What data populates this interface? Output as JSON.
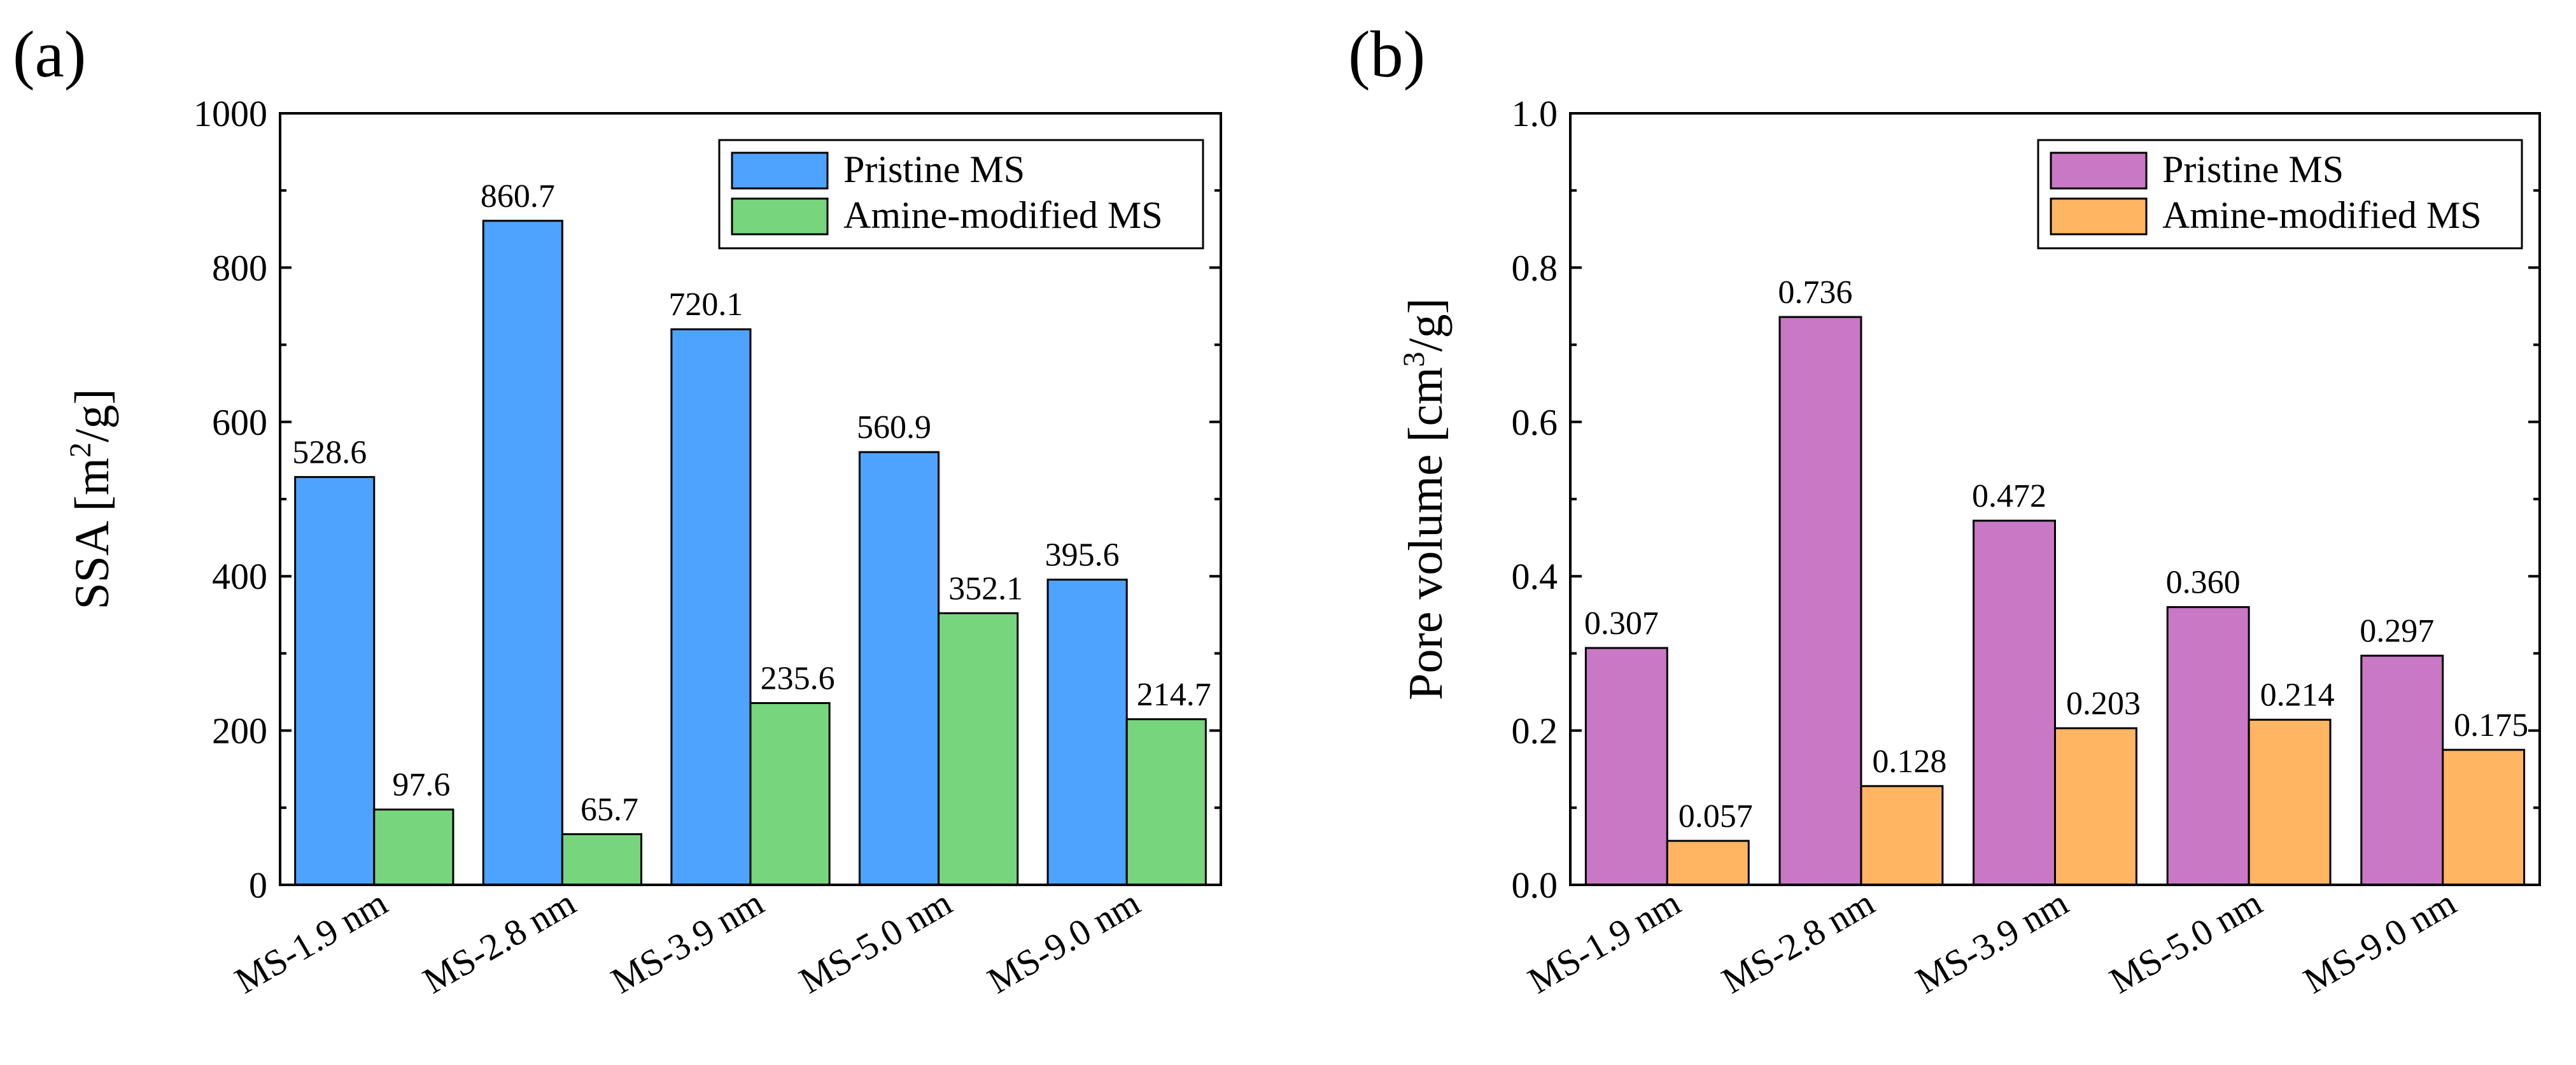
{
  "chart_data": [
    {
      "type": "bar",
      "panel_label": "(a)",
      "title": "",
      "ylabel": "SSA [m²/g]",
      "ylabel_main": "SSA [m",
      "ylabel_sup": "2",
      "ylabel_tail": "/g]",
      "xlabel": "",
      "ylim": [
        0,
        1000
      ],
      "yticks": [
        0,
        200,
        400,
        600,
        800,
        1000
      ],
      "ytick_labels": [
        "0",
        "200",
        "400",
        "600",
        "800",
        "1000"
      ],
      "categories": [
        "MS-1.9 nm",
        "MS-2.8 nm",
        "MS-3.9 nm",
        "MS-5.0 nm",
        "MS-9.0 nm"
      ],
      "series": [
        {
          "name": "Pristine MS",
          "color": "#4da3ff",
          "values": [
            528.6,
            860.7,
            720.1,
            560.9,
            395.6
          ],
          "labels": [
            "528.6",
            "860.7",
            "720.1",
            "560.9",
            "395.6"
          ]
        },
        {
          "name": "Amine-modified MS",
          "color": "#77d67d",
          "values": [
            97.6,
            65.7,
            235.6,
            352.1,
            214.7
          ],
          "labels": [
            "97.6",
            "65.7",
            "235.6",
            "352.1",
            "214.7"
          ]
        }
      ],
      "legend_position": "top-right",
      "grid": false
    },
    {
      "type": "bar",
      "panel_label": "(b)",
      "title": "",
      "ylabel": "Pore volume [cm³/g]",
      "ylabel_main": "Pore volume [cm",
      "ylabel_sup": "3",
      "ylabel_tail": "/g]",
      "xlabel": "",
      "ylim": [
        0,
        1.0
      ],
      "yticks": [
        0,
        0.2,
        0.4,
        0.6,
        0.8,
        1.0
      ],
      "ytick_labels": [
        "0.0",
        "0.2",
        "0.4",
        "0.6",
        "0.8",
        "1.0"
      ],
      "categories": [
        "MS-1.9 nm",
        "MS-2.8 nm",
        "MS-3.9 nm",
        "MS-5.0 nm",
        "MS-9.0 nm"
      ],
      "series": [
        {
          "name": "Pristine MS",
          "color": "#c878c4",
          "values": [
            0.307,
            0.736,
            0.472,
            0.36,
            0.297
          ],
          "labels": [
            "0.307",
            "0.736",
            "0.472",
            "0.360",
            "0.297"
          ]
        },
        {
          "name": "Amine-modified MS",
          "color": "#ffb561",
          "values": [
            0.057,
            0.128,
            0.203,
            0.214,
            0.175
          ],
          "labels": [
            "0.057",
            "0.128",
            "0.203",
            "0.214",
            "0.175"
          ]
        }
      ],
      "legend_position": "top-right",
      "grid": false
    }
  ]
}
